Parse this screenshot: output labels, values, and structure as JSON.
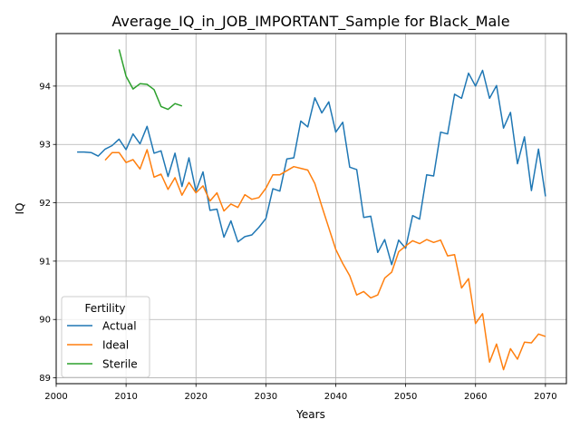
{
  "chart_data": {
    "type": "line",
    "title": "Average_IQ_in_JOB_IMPORTANT_Sample for Black_Male",
    "xlabel": "Years",
    "ylabel": "IQ",
    "xlim": [
      2000,
      2073
    ],
    "ylim": [
      88.9,
      94.9
    ],
    "xticks": [
      2000,
      2010,
      2020,
      2030,
      2040,
      2050,
      2060,
      2070
    ],
    "yticks": [
      89,
      90,
      91,
      92,
      93,
      94
    ],
    "grid": true,
    "legend": {
      "title": "Fertility",
      "position": "lower left"
    },
    "series": [
      {
        "name": "Actual",
        "color": "#1f77b4",
        "x": [
          2003,
          2004,
          2005,
          2006,
          2007,
          2008,
          2009,
          2010,
          2011,
          2012,
          2013,
          2014,
          2015,
          2016,
          2017,
          2018,
          2019,
          2020,
          2021,
          2022,
          2023,
          2024,
          2025,
          2026,
          2027,
          2028,
          2029,
          2030,
          2031,
          2032,
          2033,
          2034,
          2035,
          2036,
          2037,
          2038,
          2039,
          2040,
          2041,
          2042,
          2043,
          2044,
          2045,
          2046,
          2047,
          2048,
          2049,
          2050,
          2051,
          2052,
          2053,
          2054,
          2055,
          2056,
          2057,
          2058,
          2059,
          2060,
          2061,
          2062,
          2063,
          2064,
          2065,
          2066,
          2067,
          2068,
          2069,
          2070
        ],
        "values": [
          92.87,
          92.87,
          92.86,
          92.8,
          92.92,
          92.98,
          93.09,
          92.91,
          93.18,
          93.01,
          93.31,
          92.85,
          92.89,
          92.45,
          92.85,
          92.28,
          92.77,
          92.2,
          92.53,
          91.87,
          91.89,
          91.41,
          91.69,
          91.33,
          91.42,
          91.45,
          91.58,
          91.73,
          92.24,
          92.2,
          92.75,
          92.77,
          93.4,
          93.3,
          93.8,
          93.54,
          93.73,
          93.21,
          93.38,
          92.61,
          92.57,
          91.75,
          91.77,
          91.15,
          91.37,
          90.94,
          91.36,
          91.22,
          91.78,
          91.72,
          92.48,
          92.46,
          93.21,
          93.18,
          93.86,
          93.79,
          94.22,
          94.0,
          94.27,
          93.79,
          94.01,
          93.28,
          93.55,
          92.67,
          93.13,
          92.21,
          92.92,
          92.11
        ]
      },
      {
        "name": "Ideal",
        "color": "#ff7f0e",
        "x": [
          2007,
          2008,
          2009,
          2010,
          2011,
          2012,
          2013,
          2014,
          2015,
          2016,
          2017,
          2018,
          2019,
          2020,
          2021,
          2022,
          2023,
          2024,
          2025,
          2026,
          2027,
          2028,
          2029,
          2030,
          2031,
          2032,
          2033,
          2034,
          2035,
          2036,
          2037,
          2038,
          2039,
          2040,
          2041,
          2042,
          2043,
          2044,
          2045,
          2046,
          2047,
          2048,
          2049,
          2050,
          2051,
          2052,
          2053,
          2054,
          2055,
          2056,
          2057,
          2058,
          2059,
          2060,
          2061,
          2062,
          2063,
          2064,
          2065,
          2066,
          2067,
          2068,
          2069,
          2070
        ],
        "values": [
          92.73,
          92.86,
          92.86,
          92.69,
          92.74,
          92.58,
          92.91,
          92.44,
          92.49,
          92.23,
          92.43,
          92.13,
          92.35,
          92.17,
          92.29,
          92.03,
          92.17,
          91.86,
          91.98,
          91.92,
          92.14,
          92.06,
          92.09,
          92.25,
          92.48,
          92.48,
          92.55,
          92.62,
          92.59,
          92.56,
          92.33,
          91.94,
          91.57,
          91.2,
          90.96,
          90.75,
          90.42,
          90.48,
          90.37,
          90.42,
          90.71,
          90.81,
          91.16,
          91.26,
          91.35,
          91.3,
          91.37,
          91.32,
          91.36,
          91.09,
          91.11,
          90.54,
          90.7,
          89.93,
          90.1,
          89.27,
          89.58,
          89.14,
          89.5,
          89.32,
          89.61,
          89.6,
          89.75,
          89.71
        ]
      },
      {
        "name": "Sterile",
        "color": "#2ca02c",
        "x": [
          2009,
          2010,
          2011,
          2012,
          2013,
          2014,
          2015,
          2016,
          2017,
          2018
        ],
        "values": [
          94.63,
          94.17,
          93.95,
          94.04,
          94.03,
          93.94,
          93.65,
          93.6,
          93.7,
          93.66
        ]
      }
    ]
  }
}
